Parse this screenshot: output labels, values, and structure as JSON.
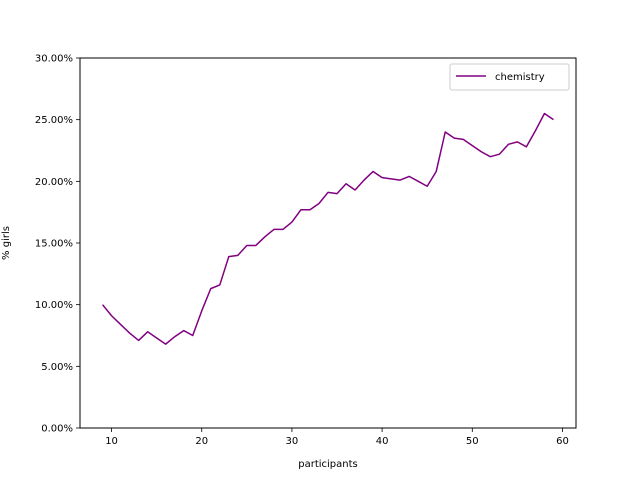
{
  "chart_data": {
    "type": "line",
    "xlabel": "participants",
    "ylabel": "% girls",
    "xlim": [
      6.5,
      61.5
    ],
    "ylim": [
      0,
      0.3
    ],
    "xticks": [
      10,
      20,
      30,
      40,
      50,
      60
    ],
    "yticks": [
      0,
      0.05,
      0.1,
      0.15,
      0.2,
      0.25,
      0.3
    ],
    "ytick_labels": [
      "0.00%",
      "5.00%",
      "10.00%",
      "15.00%",
      "20.00%",
      "25.00%",
      "30.00%"
    ],
    "grid": false,
    "legend_position": "top-right",
    "series": [
      {
        "name": "chemistry",
        "color": "#800080",
        "x": [
          9,
          10,
          11,
          12,
          13,
          14,
          15,
          16,
          17,
          18,
          19,
          20,
          21,
          22,
          23,
          24,
          25,
          26,
          27,
          28,
          29,
          30,
          31,
          32,
          33,
          34,
          35,
          36,
          37,
          38,
          39,
          40,
          41,
          42,
          43,
          44,
          45,
          46,
          47,
          48,
          49,
          50,
          51,
          52,
          53,
          54,
          55,
          56,
          57,
          58,
          59
        ],
        "y": [
          0.1,
          0.091,
          0.084,
          0.077,
          0.071,
          0.078,
          0.073,
          0.068,
          0.074,
          0.079,
          0.075,
          0.095,
          0.113,
          0.116,
          0.139,
          0.14,
          0.148,
          0.148,
          0.155,
          0.161,
          0.161,
          0.167,
          0.177,
          0.177,
          0.182,
          0.191,
          0.19,
          0.198,
          0.193,
          0.201,
          0.208,
          0.203,
          0.202,
          0.201,
          0.204,
          0.2,
          0.196,
          0.208,
          0.24,
          0.235,
          0.234,
          0.229,
          0.224,
          0.22,
          0.222,
          0.23,
          0.232,
          0.228,
          0.241,
          0.255,
          0.25
        ]
      }
    ]
  }
}
